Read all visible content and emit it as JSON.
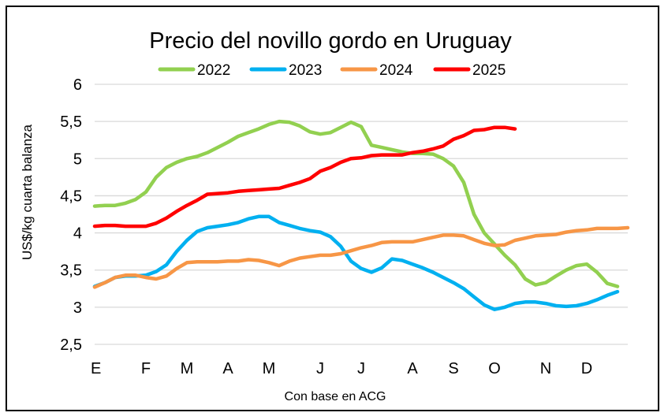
{
  "chart_data": {
    "type": "line",
    "title": "Precio del novillo gordo en Uruguay",
    "ylabel": "US$/kg cuarta balanza",
    "xlabel": "Con base en ACG",
    "ylim": [
      2.5,
      6
    ],
    "xlim": [
      1,
      52
    ],
    "grid": true,
    "legend_position": "top",
    "y_ticks": [
      "6",
      "5,5",
      "5",
      "4,5",
      "4",
      "3,5",
      "3",
      "2,5"
    ],
    "y_tick_values": [
      6,
      5.5,
      5,
      4.5,
      4,
      3.5,
      3,
      2.5
    ],
    "x_tick_labels": [
      "E",
      "F",
      "M",
      "A",
      "M",
      "J",
      "J",
      "A",
      "S",
      "O",
      "N",
      "D"
    ],
    "x_tick_weeks": [
      1,
      6,
      10,
      14,
      18,
      23,
      27,
      32,
      36,
      40,
      45,
      49
    ],
    "series": [
      {
        "name": "2022",
        "color": "#92D050",
        "x": [
          1,
          2,
          3,
          4,
          5,
          6,
          7,
          8,
          9,
          10,
          11,
          12,
          13,
          14,
          15,
          16,
          17,
          18,
          19,
          20,
          21,
          22,
          23,
          24,
          25,
          26,
          27,
          28,
          29,
          30,
          31,
          32,
          33,
          34,
          35,
          36,
          37,
          38,
          39,
          40,
          41,
          42,
          43,
          44,
          45,
          46,
          47,
          48,
          49,
          50,
          51,
          52
        ],
        "values": [
          4.36,
          4.37,
          4.37,
          4.4,
          4.45,
          4.55,
          4.75,
          4.88,
          4.95,
          5.0,
          5.03,
          5.08,
          5.15,
          5.22,
          5.3,
          5.35,
          5.4,
          5.46,
          5.5,
          5.49,
          5.44,
          5.36,
          5.33,
          5.35,
          5.42,
          5.49,
          5.43,
          5.18,
          5.15,
          5.12,
          5.09,
          5.07,
          5.07,
          5.06,
          5.0,
          4.9,
          4.68,
          4.25,
          4.0,
          3.85,
          3.7,
          3.57,
          3.38,
          3.3,
          3.33,
          3.42,
          3.5,
          3.56,
          3.58,
          3.47,
          3.32,
          3.28
        ]
      },
      {
        "name": "2023",
        "color": "#00B0F0",
        "x": [
          1,
          2,
          3,
          4,
          5,
          6,
          7,
          8,
          9,
          10,
          11,
          12,
          13,
          14,
          15,
          16,
          17,
          18,
          19,
          20,
          21,
          22,
          23,
          24,
          25,
          26,
          27,
          28,
          29,
          30,
          31,
          32,
          33,
          34,
          35,
          36,
          37,
          38,
          39,
          40,
          41,
          42,
          43,
          44,
          45,
          46,
          47,
          48,
          49,
          50,
          51,
          52
        ],
        "values": [
          3.28,
          3.33,
          3.4,
          3.42,
          3.42,
          3.43,
          3.48,
          3.57,
          3.75,
          3.9,
          4.02,
          4.07,
          4.09,
          4.11,
          4.14,
          4.19,
          4.22,
          4.22,
          4.14,
          4.1,
          4.06,
          4.03,
          4.01,
          3.95,
          3.82,
          3.62,
          3.52,
          3.47,
          3.53,
          3.65,
          3.63,
          3.58,
          3.53,
          3.47,
          3.4,
          3.33,
          3.25,
          3.14,
          3.03,
          2.97,
          3.0,
          3.05,
          3.07,
          3.07,
          3.05,
          3.02,
          3.01,
          3.02,
          3.05,
          3.1,
          3.16,
          3.21
        ]
      },
      {
        "name": "2024",
        "color": "#F79646",
        "x": [
          1,
          2,
          3,
          4,
          5,
          6,
          7,
          8,
          9,
          10,
          11,
          12,
          13,
          14,
          15,
          16,
          17,
          18,
          19,
          20,
          21,
          22,
          23,
          24,
          25,
          26,
          27,
          28,
          29,
          30,
          31,
          32,
          33,
          34,
          35,
          36,
          37,
          38,
          39,
          40,
          41,
          42,
          43,
          44,
          45,
          46,
          47,
          48,
          49,
          50,
          51,
          52,
          53
        ],
        "values": [
          3.27,
          3.33,
          3.4,
          3.43,
          3.43,
          3.4,
          3.38,
          3.42,
          3.52,
          3.6,
          3.61,
          3.61,
          3.61,
          3.62,
          3.62,
          3.64,
          3.63,
          3.6,
          3.56,
          3.62,
          3.66,
          3.68,
          3.7,
          3.7,
          3.72,
          3.76,
          3.8,
          3.83,
          3.87,
          3.88,
          3.88,
          3.88,
          3.91,
          3.94,
          3.97,
          3.97,
          3.96,
          3.91,
          3.86,
          3.83,
          3.84,
          3.9,
          3.93,
          3.96,
          3.97,
          3.98,
          4.01,
          4.03,
          4.04,
          4.06,
          4.06,
          4.06,
          4.07
        ]
      },
      {
        "name": "2025",
        "color": "#FF0000",
        "x": [
          1,
          2,
          3,
          4,
          5,
          6,
          7,
          8,
          9,
          10,
          11,
          12,
          13,
          14,
          15,
          16,
          17,
          18,
          19,
          20,
          21,
          22,
          23,
          24,
          25,
          26,
          27,
          28,
          29,
          30,
          31,
          32,
          33,
          34,
          35,
          36,
          37,
          38,
          39,
          40,
          41,
          42
        ],
        "values": [
          4.09,
          4.1,
          4.1,
          4.09,
          4.09,
          4.09,
          4.13,
          4.2,
          4.29,
          4.37,
          4.44,
          4.52,
          4.53,
          4.54,
          4.56,
          4.57,
          4.58,
          4.59,
          4.6,
          4.64,
          4.68,
          4.73,
          4.83,
          4.88,
          4.95,
          5.0,
          5.01,
          5.04,
          5.05,
          5.05,
          5.05,
          5.08,
          5.1,
          5.13,
          5.17,
          5.26,
          5.31,
          5.38,
          5.39,
          5.42,
          5.42,
          5.4
        ]
      }
    ]
  }
}
